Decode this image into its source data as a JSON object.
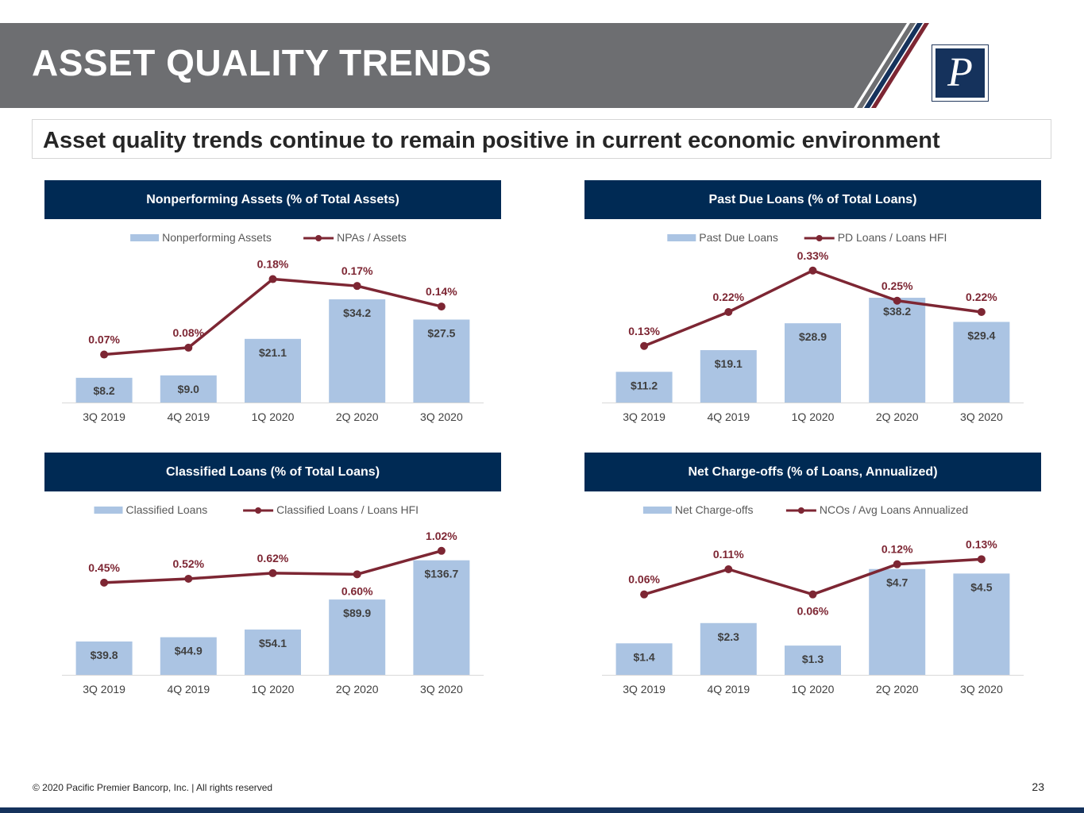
{
  "page": {
    "title": "ASSET QUALITY TRENDS",
    "subtitle": "Asset quality trends continue to remain positive in current economic environment",
    "footer": "© 2020 Pacific Premier Bancorp, Inc. | All rights reserved",
    "page_number": "23",
    "logo_letter": "P"
  },
  "colors": {
    "header_gray": "#6d6e71",
    "navy": "#002a54",
    "maroon": "#7d2633",
    "bar_blue": "#abc4e3"
  },
  "chart_data": [
    {
      "type": "bar+line",
      "title": "Nonperforming Assets (% of Total Assets)",
      "categories": [
        "3Q 2019",
        "4Q 2019",
        "1Q 2020",
        "2Q 2020",
        "3Q 2020"
      ],
      "bar_series": {
        "name": "Nonperforming Assets",
        "values": [
          8.2,
          9.0,
          21.1,
          34.2,
          27.5
        ],
        "labels": [
          "$8.2",
          "$9.0",
          "$21.1",
          "$34.2",
          "$27.5"
        ]
      },
      "line_series": {
        "name": "NPAs / Assets",
        "values": [
          0.07,
          0.08,
          0.18,
          0.17,
          0.14
        ],
        "labels": [
          "0.07%",
          "0.08%",
          "0.18%",
          "0.17%",
          "0.14%"
        ]
      },
      "bar_max": 50,
      "line_range": [
        0.0,
        0.22
      ],
      "legend": "top"
    },
    {
      "type": "bar+line",
      "title": "Past Due Loans (% of Total Loans)",
      "categories": [
        "3Q 2019",
        "4Q 2019",
        "1Q 2020",
        "2Q 2020",
        "3Q 2020"
      ],
      "bar_series": {
        "name": "Past Due Loans",
        "values": [
          11.2,
          19.1,
          28.9,
          38.2,
          29.4
        ],
        "labels": [
          "$11.2",
          "$19.1",
          "$28.9",
          "$38.2",
          "$29.4"
        ]
      },
      "line_series": {
        "name": "PD Loans / Loans HFI",
        "values": [
          0.13,
          0.22,
          0.33,
          0.25,
          0.22
        ],
        "labels": [
          "0.13%",
          "0.22%",
          "0.33%",
          "0.25%",
          "0.22%"
        ]
      },
      "bar_max": 55,
      "line_range": [
        -0.02,
        0.38
      ],
      "legend": "top"
    },
    {
      "type": "bar+line",
      "title": "Classified Loans (% of Total Loans)",
      "categories": [
        "3Q 2019",
        "4Q 2019",
        "1Q 2020",
        "2Q 2020",
        "3Q 2020"
      ],
      "bar_series": {
        "name": "Classified Loans",
        "values": [
          39.8,
          44.9,
          54.1,
          89.9,
          136.7
        ],
        "labels": [
          "$39.8",
          "$44.9",
          "$54.1",
          "$89.9",
          "$136.7"
        ]
      },
      "line_series": {
        "name": "Classified Loans /  Loans HFI",
        "values": [
          0.45,
          0.52,
          0.62,
          0.6,
          1.02
        ],
        "labels": [
          "0.45%",
          "0.52%",
          "0.62%",
          "0.60%",
          "1.02%"
        ]
      },
      "bar_max": 180,
      "line_range": [
        -1.2,
        1.5
      ],
      "legend": "top"
    },
    {
      "type": "bar+line",
      "title": "Net Charge-offs (% of Loans, Annualized)",
      "categories": [
        "3Q 2019",
        "4Q 2019",
        "1Q 2020",
        "2Q 2020",
        "3Q 2020"
      ],
      "bar_series": {
        "name": "Net Charge-offs",
        "values": [
          1.4,
          2.3,
          1.3,
          4.7,
          4.5
        ],
        "labels": [
          "$1.4",
          "$2.3",
          "$1.3",
          "$4.7",
          "$4.5"
        ]
      },
      "line_series": {
        "name": "NCOs / Avg Loans Annualized",
        "values": [
          0.06,
          0.11,
          0.06,
          0.12,
          0.13
        ],
        "labels": [
          "0.06%",
          "0.11%",
          "0.06%",
          "0.12%",
          "0.13%"
        ]
      },
      "bar_max": 6.7,
      "line_range": [
        -0.1,
        0.2
      ],
      "legend": "top"
    }
  ]
}
